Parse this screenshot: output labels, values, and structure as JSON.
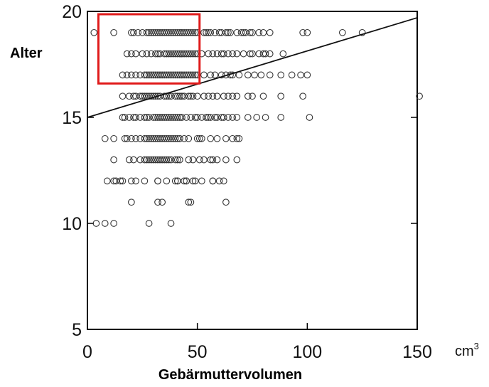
{
  "chart_data": {
    "type": "scatter",
    "title": "",
    "xlabel": "Gebärmuttervolumen",
    "ylabel": "Alter",
    "x_unit": "cm",
    "x_unit_sup": "3",
    "xlim": [
      0,
      150
    ],
    "ylim": [
      5,
      20
    ],
    "xticks": [
      0,
      50,
      100,
      150
    ],
    "yticks": [
      5,
      10,
      15,
      20
    ],
    "xtick_labels": [
      "0",
      "50",
      "100",
      "150"
    ],
    "ytick_labels": [
      "5",
      "10",
      "15",
      "20"
    ],
    "grid": false,
    "marker": "open-circle",
    "marker_color": "#333333",
    "line_color": "#111111",
    "highlight_color": "#e01a1a",
    "trend_line": {
      "x": [
        0,
        150
      ],
      "y": [
        15.0,
        19.7
      ]
    },
    "highlight_box": {
      "x": [
        5,
        51
      ],
      "y": [
        16.6,
        20
      ]
    },
    "series": [
      {
        "x": [
          3,
          12,
          20,
          21,
          23,
          25,
          27,
          28,
          29,
          30,
          31,
          32,
          33,
          34,
          35,
          36,
          37,
          38,
          39,
          40,
          41,
          42,
          43,
          44,
          45,
          46,
          47,
          48,
          49,
          50,
          53,
          54,
          55,
          56,
          58,
          60,
          61,
          63,
          64,
          65,
          68,
          70,
          71,
          72,
          74,
          75,
          78,
          80,
          83,
          98,
          100,
          116,
          125
        ],
        "y": [
          19,
          19,
          19,
          19,
          19,
          19,
          19,
          19,
          19,
          19,
          19,
          19,
          19,
          19,
          19,
          19,
          19,
          19,
          19,
          19,
          19,
          19,
          19,
          19,
          19,
          19,
          19,
          19,
          19,
          19,
          19,
          19,
          19,
          19,
          19,
          19,
          19,
          19,
          19,
          19,
          19,
          19,
          19,
          19,
          19,
          19,
          19,
          19,
          19,
          19,
          19,
          19,
          19
        ]
      },
      {
        "x": [
          18,
          20,
          22,
          25,
          27,
          29,
          31,
          32,
          33,
          35,
          36,
          37,
          38,
          39,
          40,
          41,
          42,
          43,
          44,
          45,
          46,
          47,
          48,
          49,
          50,
          52,
          55,
          57,
          59,
          61,
          62,
          64,
          66,
          68,
          71,
          74,
          75,
          78,
          80,
          81,
          83,
          89
        ],
        "y": [
          18,
          18,
          18,
          18,
          18,
          18,
          18,
          18,
          18,
          18,
          18,
          18,
          18,
          18,
          18,
          18,
          18,
          18,
          18,
          18,
          18,
          18,
          18,
          18,
          18,
          18,
          18,
          18,
          18,
          18,
          18,
          18,
          18,
          18,
          18,
          18,
          18,
          18,
          18,
          18,
          18,
          18
        ]
      },
      {
        "x": [
          16,
          18,
          20,
          22,
          24,
          26,
          27,
          28,
          29,
          30,
          31,
          32,
          33,
          34,
          35,
          36,
          37,
          38,
          39,
          40,
          41,
          42,
          43,
          44,
          45,
          46,
          47,
          48,
          49,
          50,
          53,
          56,
          58,
          61,
          63,
          65,
          66,
          69,
          73,
          76,
          79,
          83,
          88,
          93,
          97,
          100
        ],
        "y": [
          17,
          17,
          17,
          17,
          17,
          17,
          17,
          17,
          17,
          17,
          17,
          17,
          17,
          17,
          17,
          17,
          17,
          17,
          17,
          17,
          17,
          17,
          17,
          17,
          17,
          17,
          17,
          17,
          17,
          17,
          17,
          17,
          17,
          17,
          17,
          17,
          17,
          17,
          17,
          17,
          17,
          17,
          17,
          17,
          17,
          17
        ]
      },
      {
        "x": [
          16,
          19,
          21,
          22,
          24,
          25,
          26,
          27,
          28,
          29,
          30,
          31,
          32,
          33,
          35,
          36,
          37,
          38,
          40,
          41,
          42,
          43,
          44,
          46,
          47,
          48,
          50,
          53,
          55,
          57,
          59,
          62,
          64,
          66,
          68,
          73,
          75,
          80,
          88,
          98,
          151
        ],
        "y": [
          16,
          16,
          16,
          16,
          16,
          16,
          16,
          16,
          16,
          16,
          16,
          16,
          16,
          16,
          16,
          16,
          16,
          16,
          16,
          16,
          16,
          16,
          16,
          16,
          16,
          16,
          16,
          16,
          16,
          16,
          16,
          16,
          16,
          16,
          16,
          16,
          16,
          16,
          16,
          16,
          16
        ]
      },
      {
        "x": [
          16,
          17,
          19,
          21,
          22,
          24,
          26,
          27,
          28,
          30,
          31,
          32,
          33,
          34,
          35,
          36,
          37,
          38,
          39,
          40,
          41,
          42,
          43,
          45,
          47,
          49,
          50,
          52,
          54,
          55,
          56,
          58,
          59,
          61,
          62,
          64,
          66,
          68,
          73,
          77,
          81,
          88,
          101
        ],
        "y": [
          15,
          15,
          15,
          15,
          15,
          15,
          15,
          15,
          15,
          15,
          15,
          15,
          15,
          15,
          15,
          15,
          15,
          15,
          15,
          15,
          15,
          15,
          15,
          15,
          15,
          15,
          15,
          15,
          15,
          15,
          15,
          15,
          15,
          15,
          15,
          15,
          15,
          15,
          15,
          15,
          15,
          15,
          15
        ]
      },
      {
        "x": [
          8,
          12,
          17,
          18,
          20,
          22,
          24,
          26,
          27,
          28,
          29,
          30,
          31,
          32,
          33,
          34,
          35,
          36,
          37,
          38,
          39,
          40,
          41,
          42,
          44,
          46,
          50,
          51,
          52,
          56,
          59,
          63,
          66,
          68,
          69
        ],
        "y": [
          14,
          14,
          14,
          14,
          14,
          14,
          14,
          14,
          14,
          14,
          14,
          14,
          14,
          14,
          14,
          14,
          14,
          14,
          14,
          14,
          14,
          14,
          14,
          14,
          14,
          14,
          14,
          14,
          14,
          14,
          14,
          14,
          14,
          14,
          14
        ]
      },
      {
        "x": [
          12,
          19,
          21,
          24,
          26,
          27,
          28,
          29,
          30,
          31,
          32,
          33,
          34,
          35,
          36,
          37,
          38,
          40,
          41,
          42,
          46,
          48,
          51,
          53,
          56,
          57,
          59,
          63,
          68
        ],
        "y": [
          13,
          13,
          13,
          13,
          13,
          13,
          13,
          13,
          13,
          13,
          13,
          13,
          13,
          13,
          13,
          13,
          13,
          13,
          13,
          13,
          13,
          13,
          13,
          13,
          13,
          13,
          13,
          13,
          13
        ]
      },
      {
        "x": [
          12,
          15,
          20,
          26,
          32,
          36,
          40,
          41,
          44,
          45,
          48,
          52,
          57,
          62
        ],
        "y": [
          12,
          12,
          12,
          12,
          12,
          12,
          12,
          12,
          12,
          12,
          12,
          12,
          12,
          12
        ]
      },
      {
        "x": [
          9,
          13,
          16,
          22,
          32,
          41,
          45,
          49,
          57,
          60
        ],
        "y": [
          12,
          12,
          12,
          12,
          12,
          12,
          12,
          12,
          12,
          12
        ]
      },
      {
        "x": [
          20,
          32,
          34,
          46,
          47,
          63
        ],
        "y": [
          11,
          11,
          11,
          11,
          11,
          11
        ]
      },
      {
        "x": [
          4,
          8,
          12,
          28,
          38
        ],
        "y": [
          10,
          10,
          10,
          10,
          10
        ]
      }
    ]
  }
}
